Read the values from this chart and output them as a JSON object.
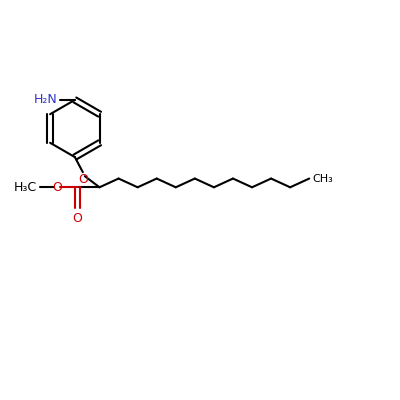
{
  "bg_color": "#ffffff",
  "bond_color": "#000000",
  "red_color": "#cc0000",
  "blue_color": "#3333cc",
  "line_width": 1.5,
  "nh2_label": "H₂N",
  "o_label1": "O",
  "o_label2": "O",
  "o_label3": "O",
  "methyl_label": "H₃C",
  "ch3_label": "CH₃"
}
